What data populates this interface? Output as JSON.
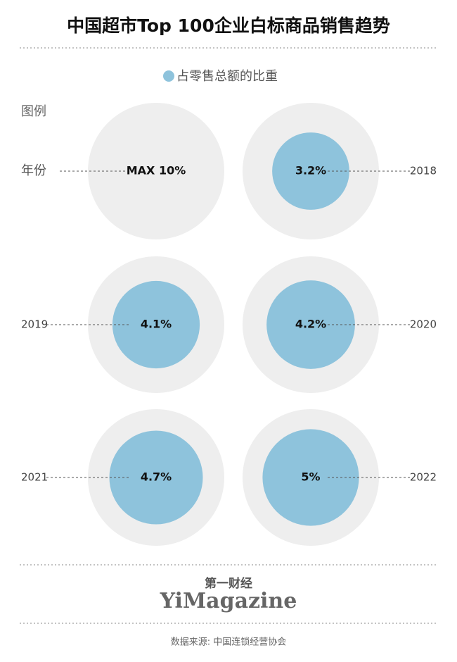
{
  "chart_data": {
    "type": "proportional-circle",
    "title": "中国超市Top 100企业白标商品销售趋势",
    "legend_title": "图例",
    "category_label": "年份",
    "max": {
      "value": 10,
      "label": "MAX 10%"
    },
    "max_color": "#eeeeee",
    "categories": [
      "2018",
      "2019",
      "2020",
      "2021",
      "2022"
    ],
    "series": [
      {
        "name": "占零售总额的比重",
        "color": "#8ec3dc",
        "values": [
          3.2,
          4.1,
          4.2,
          4.7,
          5
        ],
        "value_labels": [
          "3.2%",
          "4.1%",
          "4.2%",
          "4.7%",
          "5%"
        ]
      }
    ]
  },
  "footer": {
    "brand_cn": "第一财经",
    "brand_en": "YiMagazine",
    "source": "数据来源: 中国连锁经营协会"
  }
}
